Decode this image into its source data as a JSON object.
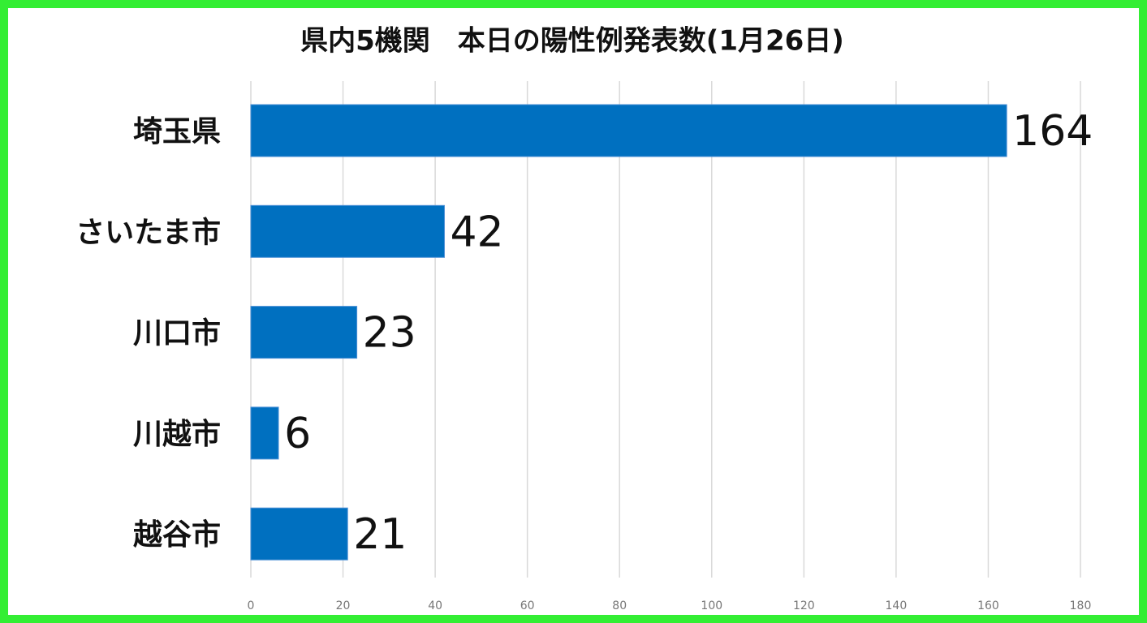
{
  "chart_data": {
    "type": "bar",
    "orientation": "horizontal",
    "title": "県内5機関　本日の陽性例発表数(1月26日)",
    "categories": [
      "埼玉県",
      "さいたま市",
      "川口市",
      "川越市",
      "越谷市"
    ],
    "values": [
      164,
      42,
      23,
      6,
      21
    ],
    "color": "#0070c0",
    "xlim": [
      0,
      180
    ],
    "xticks": [
      0,
      20,
      40,
      60,
      80,
      100,
      120,
      140,
      160,
      180
    ],
    "grid": true
  }
}
